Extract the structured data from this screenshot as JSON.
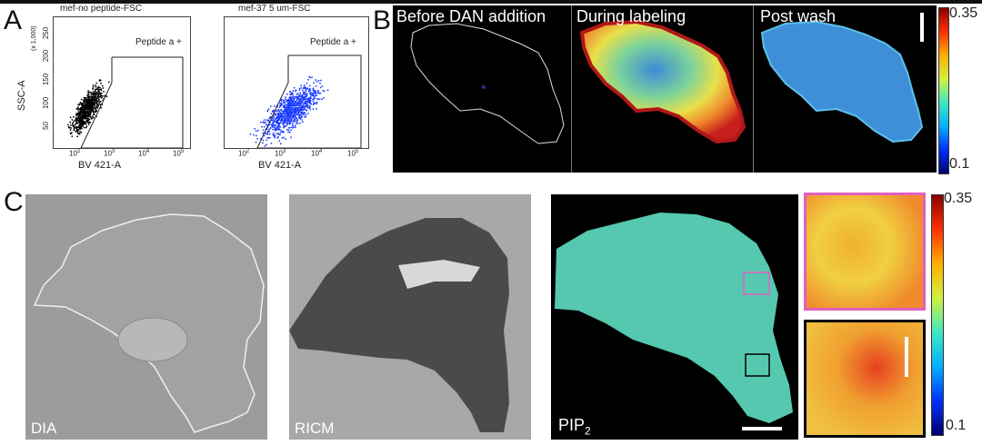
{
  "panel_a": {
    "letter": "A",
    "plot1": {
      "title": "mef-no peptide-FSC",
      "gate_label": "Peptide a +",
      "ylabel": "SSC-A",
      "yscale_note": "(x 1,000)",
      "xlabel": "BV 421-A",
      "yticks": [
        "50",
        "100",
        "150",
        "200",
        "250"
      ],
      "xticks": [
        "10",
        "10",
        "10",
        "10"
      ],
      "xtick_exps": [
        "2",
        "3",
        "4",
        "5"
      ],
      "dot_color": "#000000"
    },
    "plot2": {
      "title": "mef-37 5 um-FSC",
      "gate_label": "Peptide a +",
      "xlabel": "BV 421-A",
      "xticks": [
        "10",
        "10",
        "10",
        "10"
      ],
      "xtick_exps": [
        "2",
        "3",
        "4",
        "5"
      ],
      "dot_color": "#1a3cff"
    }
  },
  "panel_b": {
    "letter": "B",
    "labels": [
      "Before DAN addition",
      "During labeling",
      "Post wash"
    ],
    "colorbar_max": "0.35",
    "colorbar_min": "0.1"
  },
  "panel_c": {
    "letter": "C",
    "labels": [
      "DIA",
      "RICM"
    ],
    "pip_label": "PIP",
    "pip_sub": "2",
    "colorbar_max": "0.35",
    "colorbar_min": "0.1",
    "inset_top_border": "#e060c0",
    "inset_bottom_border": "#000000"
  }
}
